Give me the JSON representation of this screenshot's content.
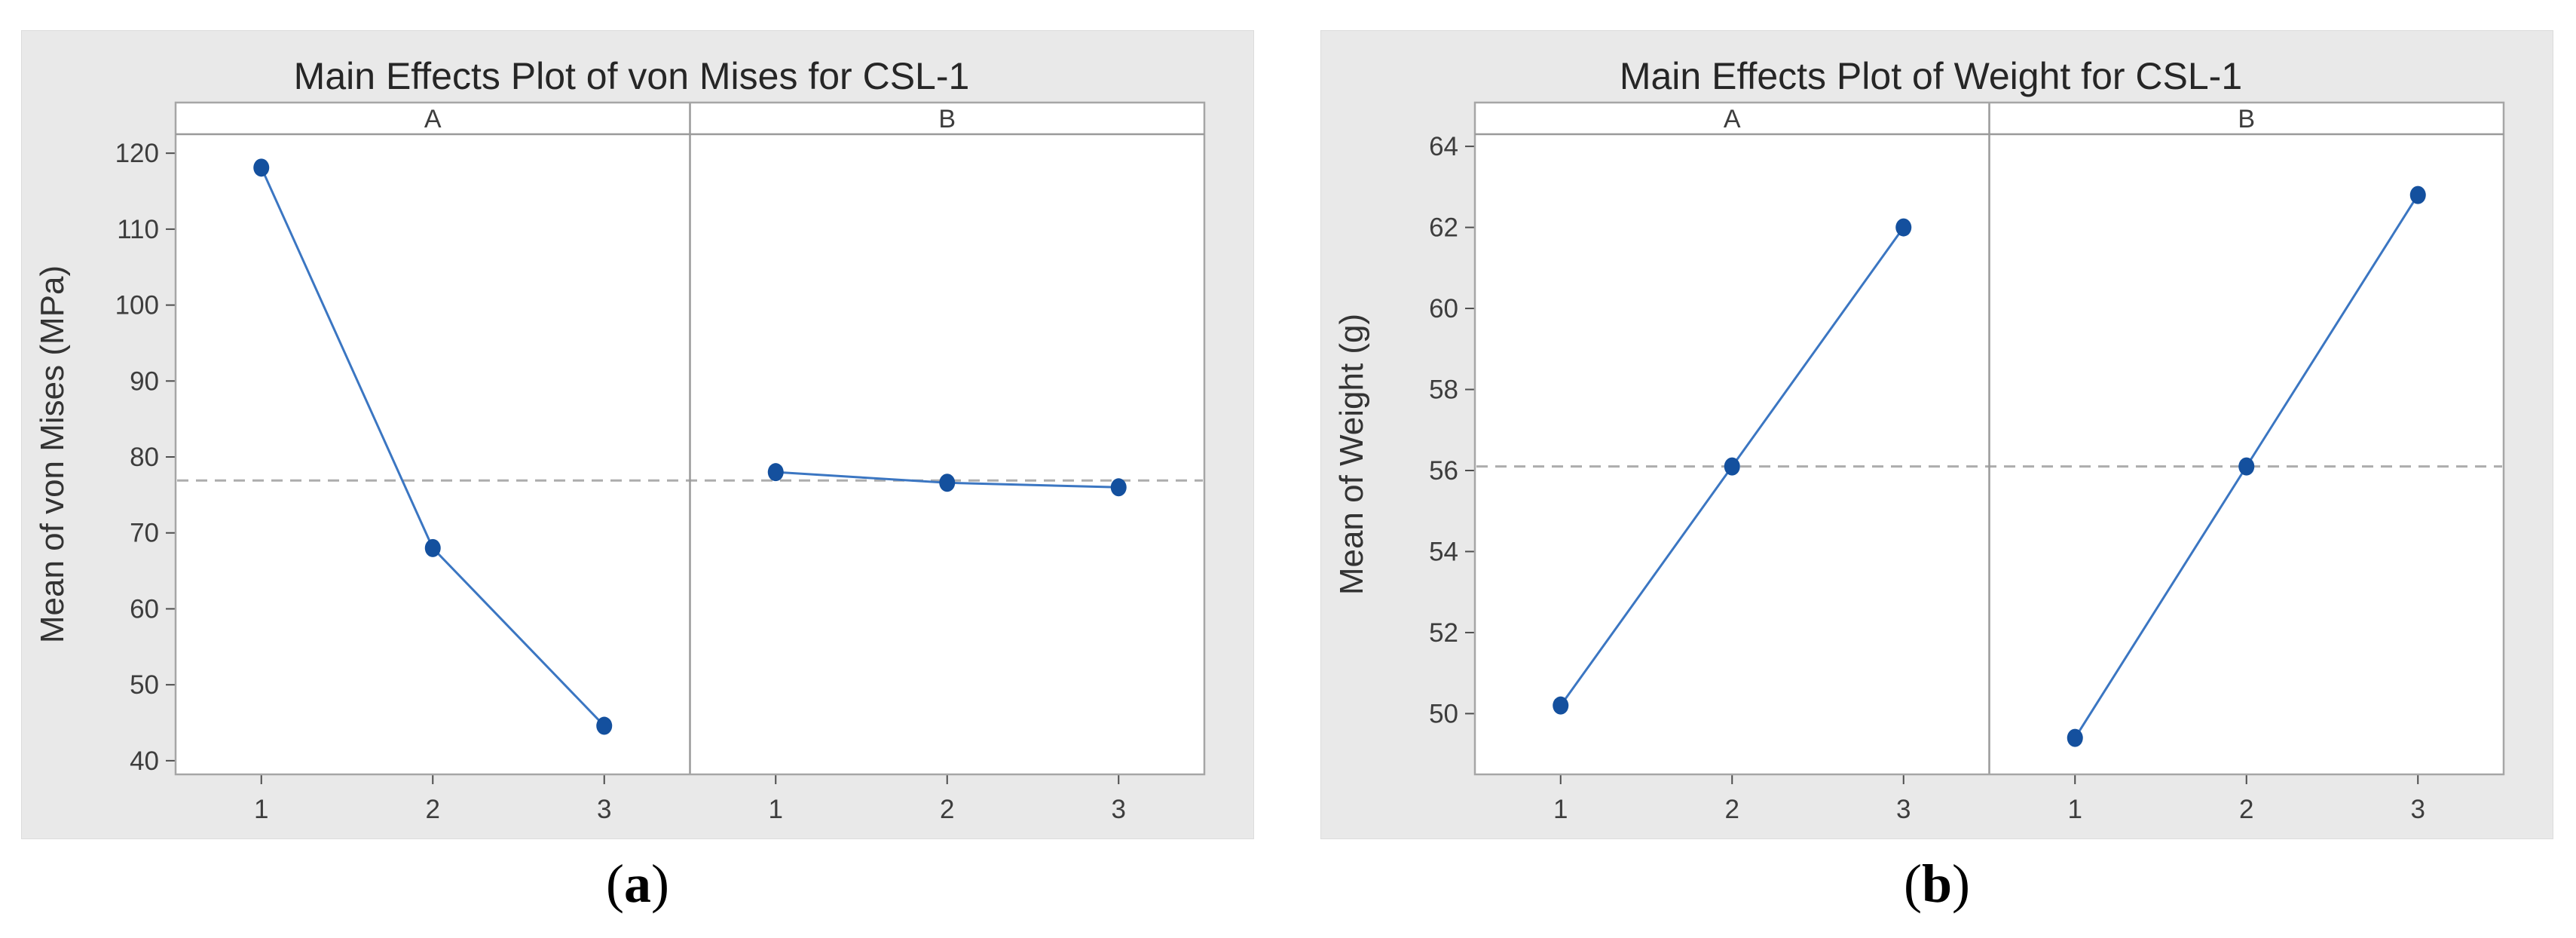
{
  "theme": {
    "figure_bg": "#e9e9e9",
    "figure_edge": "#dcdcdc",
    "plot_bg": "#ffffff",
    "plot_border": "#a6a6a6",
    "header_line": "#9a9a9a",
    "panel_divider": "#9a9a9a",
    "tick_color": "#4d4d4d",
    "tick_label_color": "#3d3d3d",
    "title_color": "#262626",
    "axis_label_color": "#333333",
    "series_line": "#3b76c2",
    "series_marker": "#14509e",
    "mean_line_color": "#adadad"
  },
  "figures": [
    {
      "id": "a",
      "caption": {
        "open": "(",
        "label": "a",
        "close": ")"
      }
    },
    {
      "id": "b",
      "caption": {
        "open": "(",
        "label": "b",
        "close": ")"
      }
    }
  ],
  "chart_data": [
    {
      "id": "a",
      "type": "line",
      "title": "Main Effects Plot of von Mises for CSL-1",
      "xlabel": "",
      "ylabel": "Mean of von Mises (MPa)",
      "grid": false,
      "legend": "none",
      "categories": [
        "1",
        "2",
        "3"
      ],
      "panels": [
        {
          "label": "A",
          "x": [
            1,
            2,
            3
          ],
          "values": [
            118.1,
            68.0,
            44.6
          ]
        },
        {
          "label": "B",
          "x": [
            1,
            2,
            3
          ],
          "values": [
            78.0,
            76.6,
            76.0
          ]
        }
      ],
      "mean_line": 76.9,
      "yticks": [
        40,
        50,
        60,
        70,
        80,
        90,
        100,
        110,
        120
      ],
      "ylim": [
        38.2,
        122.5
      ]
    },
    {
      "id": "b",
      "type": "line",
      "title": "Main Effects Plot of Weight for CSL-1",
      "xlabel": "",
      "ylabel": "Mean of Weight (g)",
      "grid": false,
      "legend": "none",
      "categories": [
        "1",
        "2",
        "3"
      ],
      "panels": [
        {
          "label": "A",
          "x": [
            1,
            2,
            3
          ],
          "values": [
            50.2,
            56.1,
            62.0
          ]
        },
        {
          "label": "B",
          "x": [
            1,
            2,
            3
          ],
          "values": [
            49.4,
            56.1,
            62.8
          ]
        }
      ],
      "mean_line": 56.1,
      "yticks": [
        50,
        52,
        54,
        56,
        58,
        60,
        62,
        64
      ],
      "ylim": [
        48.5,
        64.3
      ]
    }
  ]
}
